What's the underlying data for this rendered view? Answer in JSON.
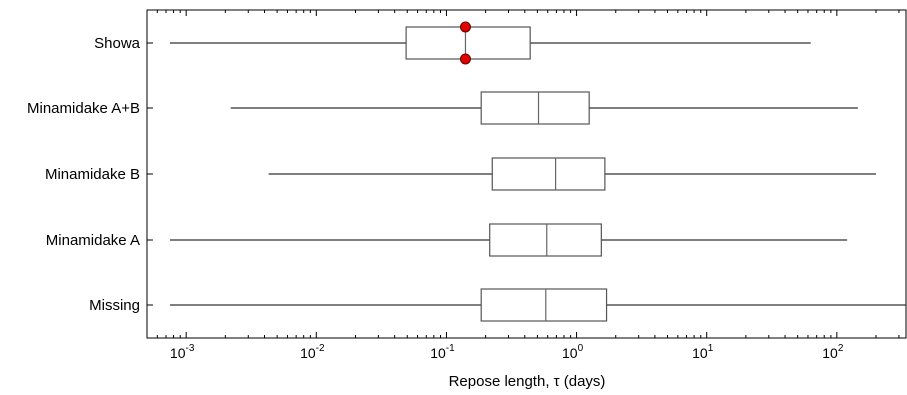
{
  "chart_data": {
    "type": "boxplot",
    "xscale": "log",
    "xlim": [
      0.0005,
      340
    ],
    "xlabel": "Repose length, τ (days)",
    "x_ticks": [
      {
        "value": 0.001,
        "base": "10",
        "exp": "-3"
      },
      {
        "value": 0.01,
        "base": "10",
        "exp": "-2"
      },
      {
        "value": 0.1,
        "base": "10",
        "exp": "-1"
      },
      {
        "value": 1,
        "base": "10",
        "exp": "0"
      },
      {
        "value": 10,
        "base": "10",
        "exp": "1"
      },
      {
        "value": 100,
        "base": "10",
        "exp": "2"
      }
    ],
    "grid": false,
    "categories": [
      "Showa",
      "Minamidake A+B",
      "Minamidake B",
      "Minamidake A",
      "Missing"
    ],
    "boxes": [
      {
        "label": "Showa",
        "whisker_low": 0.00075,
        "q1": 0.049,
        "median": 0.14,
        "q3": 0.44,
        "whisker_high": 63,
        "markers": [
          0.14,
          0.14
        ],
        "marker_color": "#e00000"
      },
      {
        "label": "Minamidake A+B",
        "whisker_low": 0.0022,
        "q1": 0.185,
        "median": 0.51,
        "q3": 1.25,
        "whisker_high": 145
      },
      {
        "label": "Minamidake B",
        "whisker_low": 0.0043,
        "q1": 0.225,
        "median": 0.69,
        "q3": 1.65,
        "whisker_high": 200
      },
      {
        "label": "Minamidake A",
        "whisker_low": 0.00075,
        "q1": 0.215,
        "median": 0.59,
        "q3": 1.55,
        "whisker_high": 120
      },
      {
        "label": "Missing",
        "whisker_low": 0.00075,
        "q1": 0.185,
        "median": 0.58,
        "q3": 1.7,
        "whisker_high": 340
      }
    ]
  }
}
